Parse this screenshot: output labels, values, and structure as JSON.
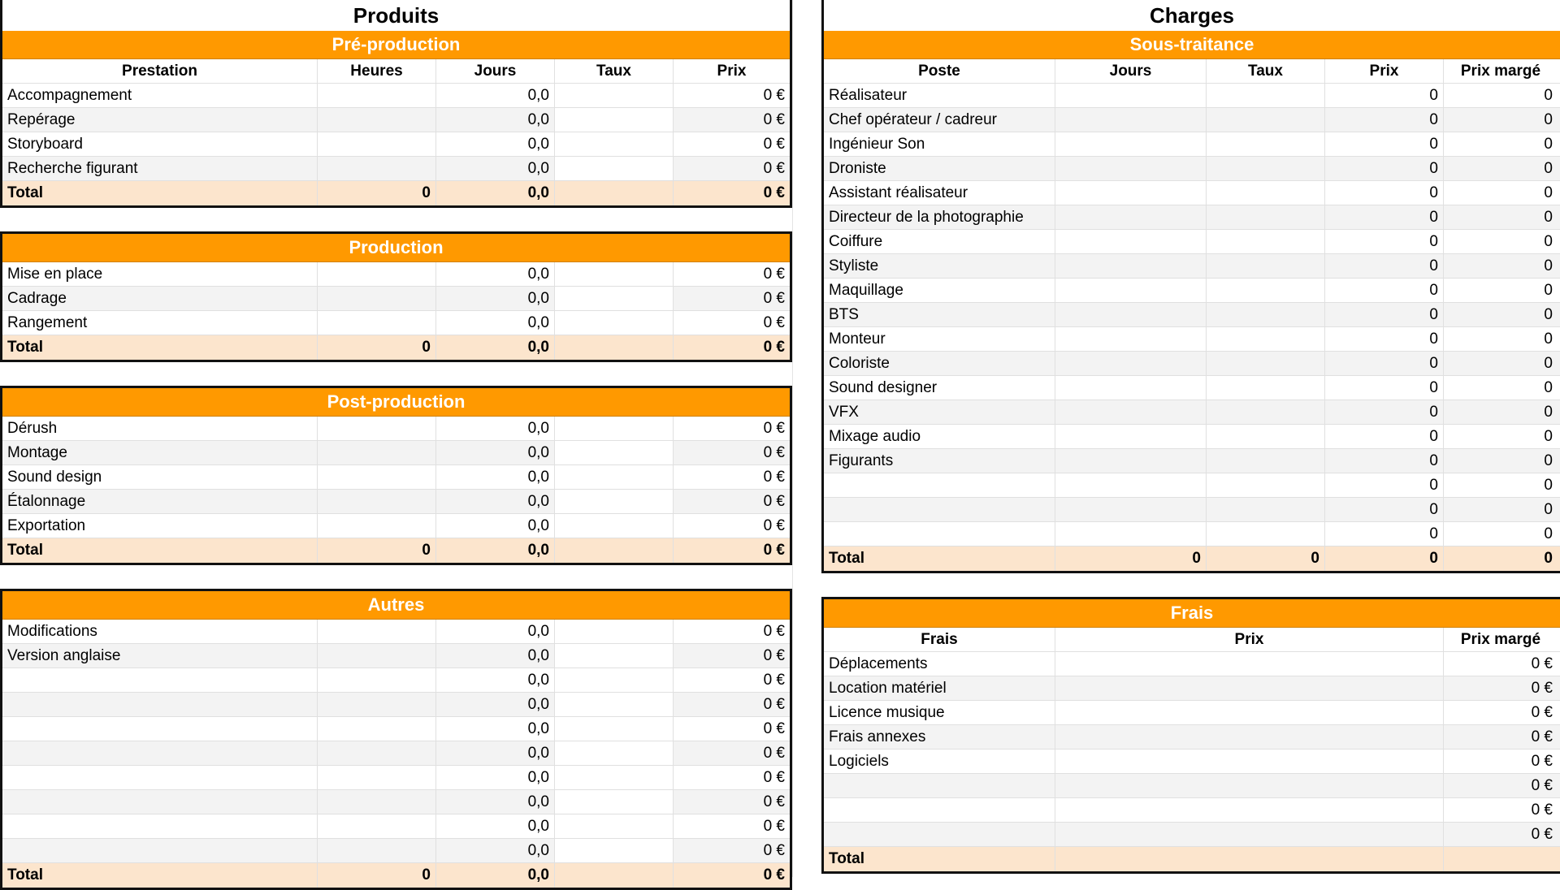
{
  "produits": {
    "title": "Produits",
    "headers": [
      "Prestation",
      "Heures",
      "Jours",
      "Taux",
      "Prix"
    ],
    "sections": [
      {
        "title": "Pré-production",
        "rows": [
          {
            "label": "Accompagnement",
            "jours": "0,0",
            "prix": "0 €"
          },
          {
            "label": "Repérage",
            "jours": "0,0",
            "prix": "0 €"
          },
          {
            "label": "Storyboard",
            "jours": "0,0",
            "prix": "0 €"
          },
          {
            "label": "Recherche figurant",
            "jours": "0,0",
            "prix": "0 €"
          }
        ],
        "total": {
          "label": "Total",
          "heures": "0",
          "jours": "0,0",
          "prix": "0 €"
        }
      },
      {
        "title": "Production",
        "rows": [
          {
            "label": "Mise en place",
            "jours": "0,0",
            "prix": "0 €"
          },
          {
            "label": "Cadrage",
            "jours": "0,0",
            "prix": "0 €"
          },
          {
            "label": "Rangement",
            "jours": "0,0",
            "prix": "0 €"
          }
        ],
        "total": {
          "label": "Total",
          "heures": "0",
          "jours": "0,0",
          "prix": "0 €"
        }
      },
      {
        "title": "Post-production",
        "rows": [
          {
            "label": "Dérush",
            "jours": "0,0",
            "prix": "0 €"
          },
          {
            "label": "Montage",
            "jours": "0,0",
            "prix": "0 €"
          },
          {
            "label": "Sound design",
            "jours": "0,0",
            "prix": "0 €"
          },
          {
            "label": "Étalonnage",
            "jours": "0,0",
            "prix": "0 €"
          },
          {
            "label": "Exportation",
            "jours": "0,0",
            "prix": "0 €"
          }
        ],
        "total": {
          "label": "Total",
          "heures": "0",
          "jours": "0,0",
          "prix": "0 €"
        }
      },
      {
        "title": "Autres",
        "rows": [
          {
            "label": "Modifications",
            "jours": "0,0",
            "prix": "0 €"
          },
          {
            "label": "Version anglaise",
            "jours": "0,0",
            "prix": "0 €"
          },
          {
            "label": "",
            "jours": "0,0",
            "prix": "0 €"
          },
          {
            "label": "",
            "jours": "0,0",
            "prix": "0 €"
          },
          {
            "label": "",
            "jours": "0,0",
            "prix": "0 €"
          },
          {
            "label": "",
            "jours": "0,0",
            "prix": "0 €"
          },
          {
            "label": "",
            "jours": "0,0",
            "prix": "0 €"
          },
          {
            "label": "",
            "jours": "0,0",
            "prix": "0 €"
          },
          {
            "label": "",
            "jours": "0,0",
            "prix": "0 €"
          },
          {
            "label": "",
            "jours": "0,0",
            "prix": "0 €"
          }
        ],
        "total": {
          "label": "Total",
          "heures": "0",
          "jours": "0,0",
          "prix": "0 €"
        }
      }
    ]
  },
  "charges": {
    "title": "Charges",
    "sous_traitance": {
      "title": "Sous-traitance",
      "headers": [
        "Poste",
        "Jours",
        "Taux",
        "Prix",
        "Prix margé"
      ],
      "rows": [
        {
          "label": "Réalisateur",
          "prix": "0",
          "marge": "0"
        },
        {
          "label": "Chef opérateur / cadreur",
          "prix": "0",
          "marge": "0"
        },
        {
          "label": "Ingénieur Son",
          "prix": "0",
          "marge": "0"
        },
        {
          "label": "Droniste",
          "prix": "0",
          "marge": "0"
        },
        {
          "label": "Assistant réalisateur",
          "prix": "0",
          "marge": "0"
        },
        {
          "label": "Directeur de la photographie",
          "prix": "0",
          "marge": "0"
        },
        {
          "label": "Coiffure",
          "prix": "0",
          "marge": "0"
        },
        {
          "label": "Styliste",
          "prix": "0",
          "marge": "0"
        },
        {
          "label": "Maquillage",
          "prix": "0",
          "marge": "0"
        },
        {
          "label": "BTS",
          "prix": "0",
          "marge": "0"
        },
        {
          "label": "Monteur",
          "prix": "0",
          "marge": "0"
        },
        {
          "label": "Coloriste",
          "prix": "0",
          "marge": "0"
        },
        {
          "label": "Sound designer",
          "prix": "0",
          "marge": "0"
        },
        {
          "label": "VFX",
          "prix": "0",
          "marge": "0"
        },
        {
          "label": "Mixage audio",
          "prix": "0",
          "marge": "0"
        },
        {
          "label": "Figurants",
          "prix": "0",
          "marge": "0"
        },
        {
          "label": "",
          "prix": "0",
          "marge": "0"
        },
        {
          "label": "",
          "prix": "0",
          "marge": "0"
        },
        {
          "label": "",
          "prix": "0",
          "marge": "0"
        }
      ],
      "total": {
        "label": "Total",
        "jours": "0",
        "taux": "0",
        "prix": "0",
        "marge": "0"
      }
    },
    "frais": {
      "title": "Frais",
      "headers": [
        "Frais",
        "Prix",
        "Prix margé"
      ],
      "rows": [
        {
          "label": "Déplacements",
          "marge": "0 €"
        },
        {
          "label": "Location matériel",
          "marge": "0 €"
        },
        {
          "label": "Licence musique",
          "marge": "0 €"
        },
        {
          "label": "Frais annexes",
          "marge": "0 €"
        },
        {
          "label": "Logiciels",
          "marge": "0 €"
        },
        {
          "label": "",
          "marge": "0 €"
        },
        {
          "label": "",
          "marge": "0 €"
        },
        {
          "label": "",
          "marge": "0 €"
        }
      ],
      "total": {
        "label": "Total"
      }
    }
  },
  "colors": {
    "accent": "#ff9900",
    "total_bg": "#fce5cd",
    "alt_row": "#f3f3f3",
    "border": "#111111"
  }
}
